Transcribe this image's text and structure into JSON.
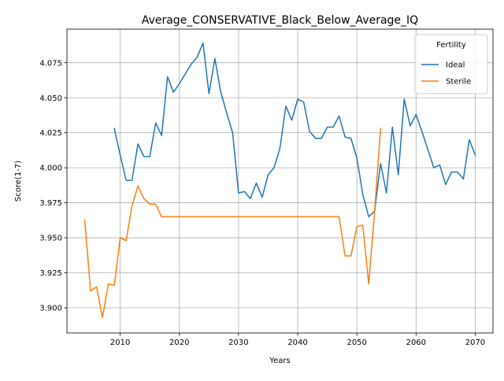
{
  "chart_data": {
    "type": "line",
    "title": "Average_CONSERVATIVE_Black_Below_Average_IQ",
    "xlabel": "Years",
    "ylabel": "Score(1-7)",
    "xlim": [
      2001,
      2073
    ],
    "ylim": [
      3.882,
      4.099
    ],
    "x_ticks": [
      2010,
      2020,
      2030,
      2040,
      2050,
      2060,
      2070
    ],
    "y_ticks": [
      3.9,
      3.925,
      3.95,
      3.975,
      4.0,
      4.025,
      4.05,
      4.075
    ],
    "x_tick_labels": [
      "2010",
      "2020",
      "2030",
      "2040",
      "2050",
      "2060",
      "2070"
    ],
    "y_tick_labels": [
      "3.900",
      "3.925",
      "3.950",
      "3.975",
      "4.000",
      "4.025",
      "4.050",
      "4.075"
    ],
    "grid": true,
    "legend": {
      "title": "Fertility",
      "placement": "top-right"
    },
    "series": [
      {
        "name": "Ideal",
        "color": "#1f77b4",
        "x": [
          2009,
          2010,
          2011,
          2012,
          2013,
          2014,
          2015,
          2016,
          2017,
          2018,
          2019,
          2020,
          2021,
          2022,
          2023,
          2024,
          2025,
          2026,
          2027,
          2028,
          2029,
          2030,
          2031,
          2032,
          2033,
          2034,
          2035,
          2036,
          2037,
          2038,
          2039,
          2040,
          2041,
          2042,
          2043,
          2044,
          2045,
          2046,
          2047,
          2048,
          2049,
          2050,
          2051,
          2052,
          2053,
          2054,
          2055,
          2056,
          2057,
          2058,
          2059,
          2060,
          2061,
          2062,
          2063,
          2064,
          2065,
          2066,
          2067,
          2068,
          2069,
          2070
        ],
        "y": [
          4.028,
          4.009,
          3.991,
          3.991,
          4.017,
          4.008,
          4.008,
          4.032,
          4.023,
          4.065,
          4.054,
          4.06,
          4.067,
          4.074,
          4.079,
          4.089,
          4.053,
          4.078,
          4.054,
          4.039,
          4.025,
          3.982,
          3.983,
          3.978,
          3.989,
          3.979,
          3.995,
          4.0,
          4.014,
          4.044,
          4.034,
          4.049,
          4.047,
          4.026,
          4.021,
          4.021,
          4.029,
          4.029,
          4.037,
          4.022,
          4.021,
          4.007,
          3.981,
          3.965,
          3.969,
          4.003,
          3.982,
          4.029,
          3.995,
          4.049,
          4.03,
          4.038,
          4.026,
          4.013,
          4.0,
          4.002,
          3.988,
          3.997,
          3.997,
          3.992,
          4.02,
          4.009
        ]
      },
      {
        "name": "Sterile",
        "color": "#ff7f0e",
        "x": [
          2004,
          2005,
          2006,
          2007,
          2008,
          2009,
          2010,
          2011,
          2012,
          2013,
          2014,
          2015,
          2016,
          2017,
          2018,
          2019,
          2020,
          2021,
          2022,
          2023,
          2024,
          2025,
          2026,
          2027,
          2028,
          2029,
          2030,
          2031,
          2032,
          2033,
          2034,
          2035,
          2036,
          2037,
          2038,
          2039,
          2040,
          2041,
          2042,
          2043,
          2044,
          2045,
          2046,
          2047,
          2048,
          2049,
          2050,
          2051,
          2052,
          2053,
          2054
        ],
        "y": [
          3.963,
          3.912,
          3.915,
          3.893,
          3.917,
          3.916,
          3.95,
          3.948,
          3.973,
          3.987,
          3.978,
          3.974,
          3.974,
          3.965,
          3.965,
          3.965,
          3.965,
          3.965,
          3.965,
          3.965,
          3.965,
          3.965,
          3.965,
          3.965,
          3.965,
          3.965,
          3.965,
          3.965,
          3.965,
          3.965,
          3.965,
          3.965,
          3.965,
          3.965,
          3.965,
          3.965,
          3.965,
          3.965,
          3.965,
          3.965,
          3.965,
          3.965,
          3.965,
          3.965,
          3.937,
          3.937,
          3.958,
          3.959,
          3.917,
          3.969,
          4.028
        ]
      }
    ]
  }
}
